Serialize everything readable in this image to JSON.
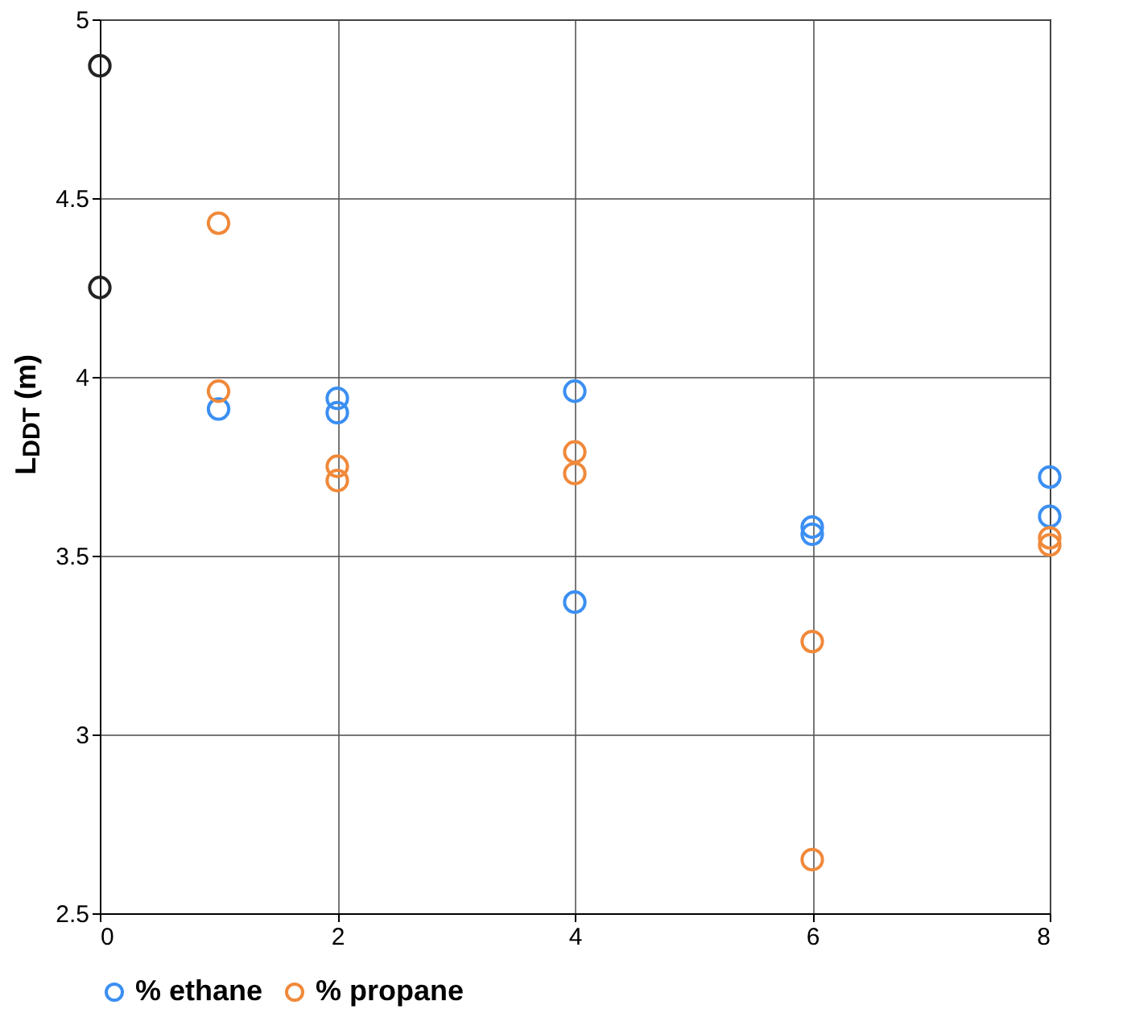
{
  "chart_data": {
    "type": "scatter",
    "ylabel": "L$_{DDT}$ (m)",
    "xlim": [
      0,
      8
    ],
    "xticks": [
      0,
      2,
      4,
      6,
      8
    ],
    "ylim": [
      2.5,
      5
    ],
    "yticks": [
      2.5,
      3,
      3.5,
      4,
      4.5,
      5
    ],
    "grid": true,
    "legend": "bottom",
    "marker": "circle",
    "series": [
      {
        "color": "#222222",
        "x": [
          0,
          0
        ],
        "values": [
          4.87,
          4.25
        ]
      },
      {
        "name": "% ethane",
        "color": "#3b8ff2",
        "x": [
          1,
          2,
          2,
          4,
          4,
          6,
          6,
          8,
          8
        ],
        "values": [
          3.91,
          3.94,
          3.9,
          3.96,
          3.37,
          3.58,
          3.56,
          3.72,
          3.61
        ]
      },
      {
        "name": "% propane",
        "color": "#f0893a",
        "x": [
          1,
          1,
          2,
          2,
          4,
          4,
          6,
          6,
          8,
          8
        ],
        "values": [
          4.43,
          3.96,
          3.75,
          3.71,
          3.79,
          3.73,
          3.26,
          2.65,
          3.55,
          3.53
        ]
      }
    ]
  }
}
